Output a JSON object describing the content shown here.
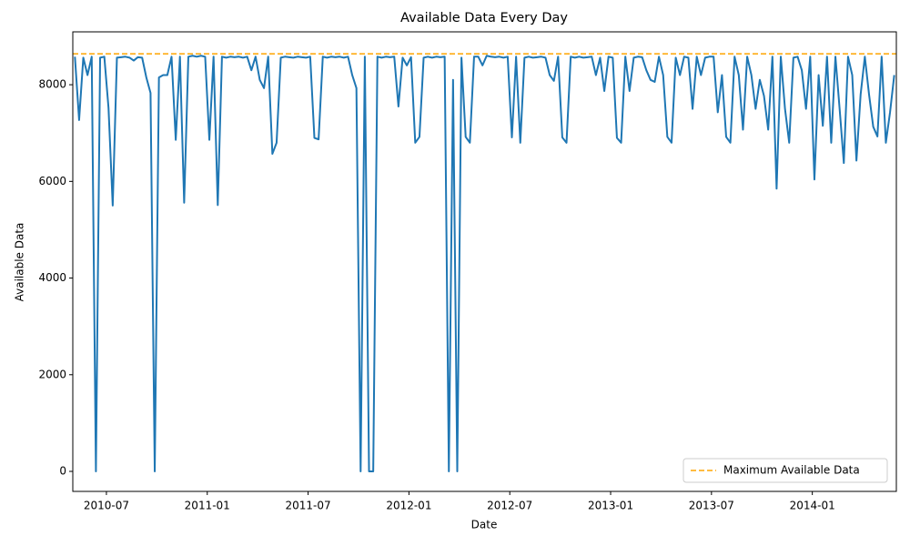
{
  "chart_data": {
    "type": "line",
    "title": "Available Data Every Day",
    "x_label": "Date",
    "y_label": "Available Data",
    "x": [
      "2010-05",
      "2010-06",
      "2010-07",
      "2010-08",
      "2010-09",
      "2010-10",
      "2010-11",
      "2010-12",
      "2011-01",
      "2011-02",
      "2011-03",
      "2011-04",
      "2011-05",
      "2011-06",
      "2011-07",
      "2011-08",
      "2011-09",
      "2011-10",
      "2011-11",
      "2011-12",
      "2012-01",
      "2012-02",
      "2012-03",
      "2012-04",
      "2012-05",
      "2012-06",
      "2012-07",
      "2012-08",
      "2012-09",
      "2012-10",
      "2012-11",
      "2012-12",
      "2013-01",
      "2013-02",
      "2013-03",
      "2013-04",
      "2013-05",
      "2013-06",
      "2013-07",
      "2013-08",
      "2013-09",
      "2013-10",
      "2013-11",
      "2013-12",
      "2014-01",
      "2014-02",
      "2014-03",
      "2014-04",
      "2014-05"
    ],
    "series": [
      {
        "color": "#1f77b4",
        "values": [
          [
            8580,
            7270,
            8560,
            8200
          ],
          [
            8580,
            0,
            8560,
            8580
          ],
          [
            7520,
            5500,
            8560,
            8570
          ],
          [
            8580,
            8560,
            8500,
            8570
          ],
          [
            8560,
            8150,
            7830,
            0
          ],
          [
            8150,
            8200,
            8200,
            8580
          ],
          [
            6860,
            8580,
            5560,
            8580
          ],
          [
            8600,
            8580,
            8600,
            8580
          ],
          [
            6860,
            8580,
            5510,
            8580
          ],
          [
            8560,
            8580,
            8570,
            8580
          ],
          [
            8560,
            8580,
            8300,
            8580
          ],
          [
            8100,
            7930,
            8580,
            6570
          ],
          [
            6800,
            8560,
            8580,
            8570
          ],
          [
            8560,
            8580,
            8570,
            8560
          ],
          [
            8580,
            6900,
            6870,
            8580
          ],
          [
            8560,
            8580,
            8570,
            8580
          ],
          [
            8560,
            8580,
            8200,
            7930
          ],
          [
            0,
            8580,
            0,
            0
          ],
          [
            8580,
            8560,
            8580,
            8570
          ],
          [
            8580,
            7550,
            8560,
            8400
          ],
          [
            8570,
            6800,
            6920,
            8560
          ],
          [
            8580,
            8560,
            8580,
            8570
          ],
          [
            8580,
            0,
            8100,
            0
          ],
          [
            8560,
            6920,
            6800,
            8580
          ],
          [
            8580,
            8400,
            8600,
            8580
          ],
          [
            8570,
            8580,
            8560,
            8580
          ],
          [
            6910,
            8580,
            6800,
            8560
          ],
          [
            8580,
            8560,
            8570,
            8580
          ],
          [
            8560,
            8200,
            8080,
            8580
          ],
          [
            6910,
            6800,
            8580,
            8560
          ],
          [
            8580,
            8560,
            8570,
            8580
          ],
          [
            8200,
            8560,
            7870,
            8580
          ],
          [
            8560,
            6900,
            6800,
            8580
          ],
          [
            7870,
            8560,
            8580,
            8570
          ],
          [
            8300,
            8100,
            8060,
            8580
          ],
          [
            8200,
            6920,
            6800,
            8560
          ],
          [
            8200,
            8580,
            8560,
            7500
          ],
          [
            8580,
            8200,
            8560,
            8580
          ],
          [
            8580,
            7430,
            8200,
            6920
          ],
          [
            6800,
            8580,
            8200,
            7070
          ],
          [
            8580,
            8200,
            7500,
            8100
          ],
          [
            7770,
            7070,
            8580,
            5850
          ],
          [
            8580,
            7500,
            6800,
            8560
          ],
          [
            8580,
            8300,
            7500,
            8580
          ],
          [
            6040,
            8200,
            7150,
            8580
          ],
          [
            6800,
            8580,
            7500,
            6380
          ],
          [
            8580,
            8200,
            6430,
            7800
          ],
          [
            8580,
            7800,
            7130,
            6930
          ],
          [
            8580,
            6800,
            7430,
            8200
          ]
        ]
      }
    ],
    "reference_line": {
      "name": "Maximum Available Data",
      "color": "#ffa500",
      "value": 8640
    },
    "xlim": [
      "2010-05",
      "2014-06"
    ],
    "xticks": [
      "2010-07",
      "2011-01",
      "2011-07",
      "2012-01",
      "2012-07",
      "2013-01",
      "2013-07",
      "2014-01"
    ],
    "ylim": [
      -414,
      9094
    ],
    "yticks": [
      0,
      2000,
      4000,
      6000,
      8000
    ],
    "legend": "lower right"
  }
}
